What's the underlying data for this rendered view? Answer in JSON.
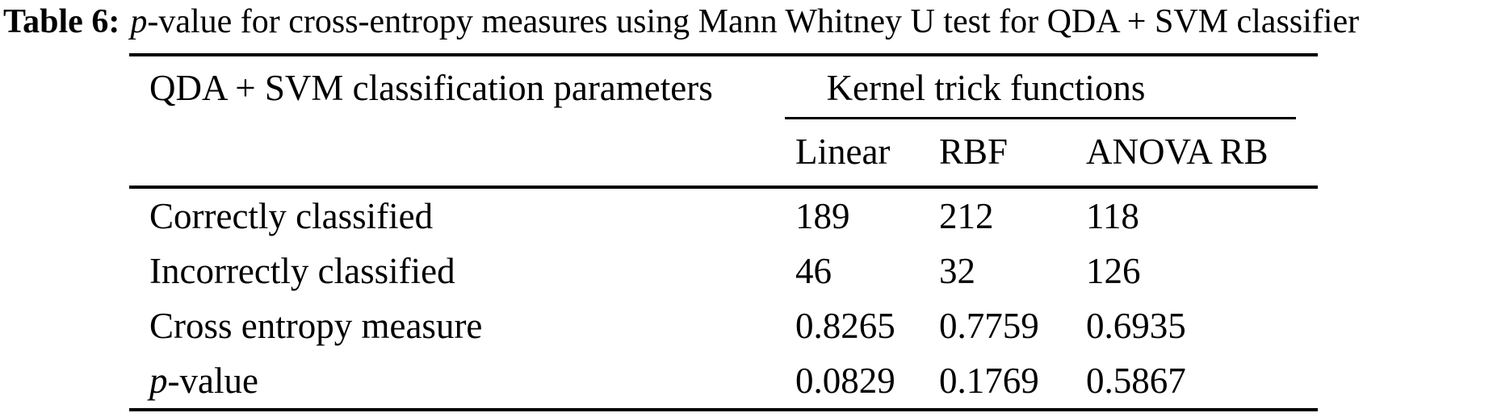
{
  "caption": {
    "label": "Table 6:",
    "italic_part": "p",
    "rest": "-value for cross-entropy measures using Mann Whitney U test for QDA + SVM classifier"
  },
  "table": {
    "param_header": "QDA + SVM classification parameters",
    "group_header": "Kernel trick functions",
    "columns": [
      "Linear",
      "RBF",
      "ANOVA RB"
    ],
    "rows": [
      {
        "label_italic": "",
        "label": "Correctly classified",
        "values": [
          "189",
          "212",
          "118"
        ]
      },
      {
        "label_italic": "",
        "label": "Incorrectly classified",
        "values": [
          "46",
          "32",
          "126"
        ]
      },
      {
        "label_italic": "",
        "label": "Cross entropy measure",
        "values": [
          "0.8265",
          "0.7759",
          "0.6935"
        ]
      },
      {
        "label_italic": "p",
        "label": "-value",
        "values": [
          "0.0829",
          "0.1769",
          "0.5867"
        ]
      }
    ]
  },
  "chart_data": {
    "type": "table",
    "title": "Table 6: p-value for cross-entropy measures using Mann Whitney U test for QDA + SVM classifier",
    "row_header": "QDA + SVM classification parameters",
    "column_group": "Kernel trick functions",
    "categories": [
      "Linear",
      "RBF",
      "ANOVA RB"
    ],
    "series": [
      {
        "name": "Correctly classified",
        "values": [
          189,
          212,
          118
        ]
      },
      {
        "name": "Incorrectly classified",
        "values": [
          46,
          32,
          126
        ]
      },
      {
        "name": "Cross entropy measure",
        "values": [
          0.8265,
          0.7759,
          0.6935
        ]
      },
      {
        "name": "p-value",
        "values": [
          0.0829,
          0.1769,
          0.5867
        ]
      }
    ]
  }
}
